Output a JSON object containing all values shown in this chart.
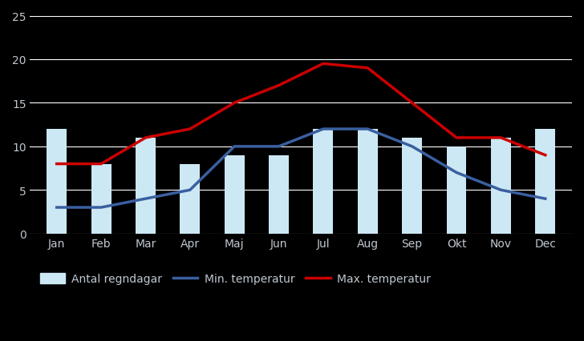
{
  "months": [
    "Jan",
    "Feb",
    "Mar",
    "Apr",
    "Maj",
    "Jun",
    "Jul",
    "Aug",
    "Sep",
    "Okt",
    "Nov",
    "Dec"
  ],
  "bar_values": [
    12,
    8,
    11,
    8,
    9,
    9,
    12,
    12,
    11,
    10,
    11,
    12
  ],
  "min_temp": [
    3,
    3,
    4,
    5,
    10,
    10,
    12,
    12,
    10,
    7,
    5,
    4
  ],
  "max_temp": [
    8,
    8,
    11,
    12,
    15,
    17,
    19.5,
    19,
    15,
    11,
    11,
    9
  ],
  "bar_color": "#cce8f4",
  "bar_edge_color": "#cce8f4",
  "min_temp_color": "#3a5fa0",
  "max_temp_color": "#cc0000",
  "background_color": "#000000",
  "plot_bg_color": "#000000",
  "grid_color": "#ffffff",
  "text_color": "#c0c8d0",
  "legend_label_rain": "Antal regndagar",
  "legend_label_min": "Min. temperatur",
  "legend_label_max": "Max. temperatur",
  "ylim": [
    0,
    25
  ],
  "yticks": [
    0,
    5,
    10,
    15,
    20,
    25
  ],
  "bar_width": 0.45
}
